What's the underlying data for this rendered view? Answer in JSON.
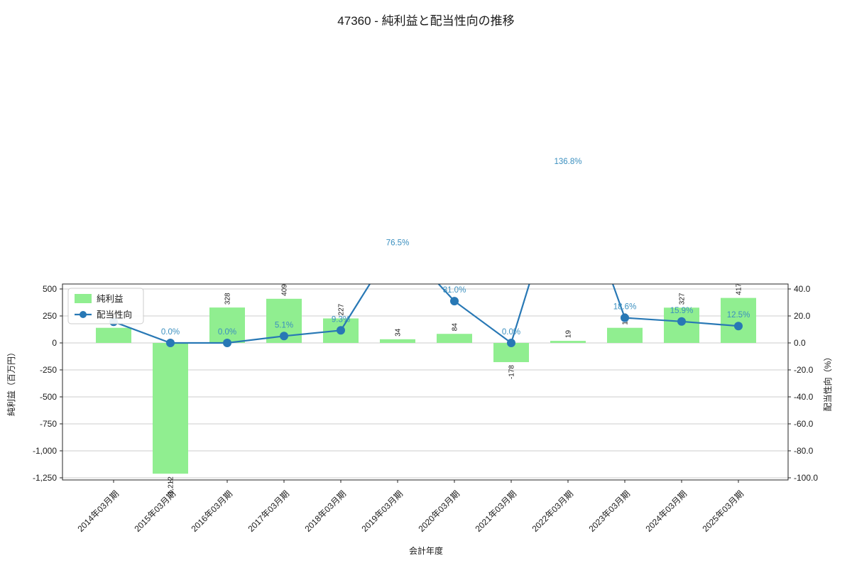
{
  "title": "47360 - 純利益と配当性向の推移",
  "chart_data": {
    "type": "bar",
    "title": "47360 - 純利益と配当性向の推移",
    "xlabel": "会計年度",
    "ylabel_left": "純利益（百万円）",
    "ylabel_right": "配当性向（%）",
    "categories": [
      "2014年03月期",
      "2015年03月期",
      "2016年03月期",
      "2017年03月期",
      "2018年03月期",
      "2019年03月期",
      "2020年03月期",
      "2021年03月期",
      "2022年03月期",
      "2023年03月期",
      "2024年03月期",
      "2025年03月期"
    ],
    "series": [
      {
        "name": "純利益",
        "kind": "bar",
        "axis": "left",
        "color": "#90ee90",
        "label_color": "#1a1a1a",
        "values": [
          140,
          -1212,
          328,
          409,
          227,
          34,
          84,
          -178,
          19,
          140,
          327,
          417
        ],
        "labels": [
          "140",
          "-1,212",
          "328",
          "409",
          "227",
          "34",
          "84",
          "-178",
          "19",
          "140",
          "327",
          "417"
        ]
      },
      {
        "name": "配当性向",
        "kind": "line",
        "axis": "right",
        "color": "#2878b5",
        "label_color": "#3a8fbf",
        "values": [
          15.7,
          0.0,
          0.0,
          5.1,
          9.3,
          76.5,
          31.0,
          0.0,
          136.8,
          18.6,
          15.9,
          12.5
        ],
        "labels": [
          "",
          "0.0%",
          "0.0%",
          "5.1%",
          "9.3%",
          "76.5%",
          "31.0%",
          "0.0%",
          "136.8%",
          "18.6%",
          "15.9%",
          "12.5%"
        ]
      }
    ],
    "left_axis": {
      "min": -1270,
      "max": 546,
      "ticks": [
        {
          "v": 500,
          "label": "500"
        },
        {
          "v": 250,
          "label": "250"
        },
        {
          "v": 0,
          "label": "0"
        },
        {
          "v": -250,
          "label": "-250"
        },
        {
          "v": -500,
          "label": "-500"
        },
        {
          "v": -750,
          "label": "-750"
        },
        {
          "v": -1000,
          "label": "-1,000"
        },
        {
          "v": -1250,
          "label": "-1,250"
        }
      ]
    },
    "right_axis": {
      "min": -101.6,
      "max": 43.68,
      "ticks": [
        {
          "v": 40,
          "label": "40.0"
        },
        {
          "v": 20,
          "label": "20.0"
        },
        {
          "v": 0,
          "label": "0.0"
        },
        {
          "v": -20,
          "label": "-20.0"
        },
        {
          "v": -40,
          "label": "-40.0"
        },
        {
          "v": -60,
          "label": "-60.0"
        },
        {
          "v": -80,
          "label": "-80.0"
        },
        {
          "v": -100,
          "label": "-100.0"
        }
      ]
    },
    "legend": {
      "position": "upper-left",
      "items": [
        "純利益",
        "配当性向"
      ]
    },
    "grid": true,
    "colors": {
      "grid": "#cccccc",
      "axis": "#262626",
      "text": "#1a1a1a",
      "background": "#ffffff"
    }
  }
}
